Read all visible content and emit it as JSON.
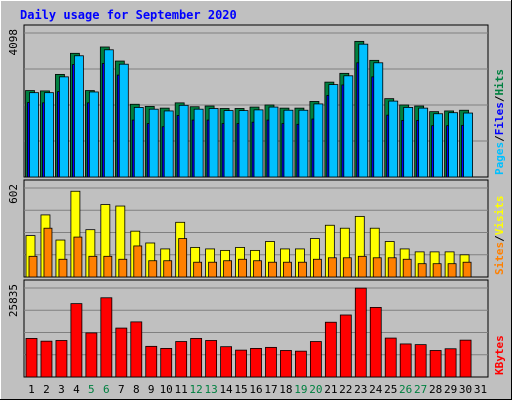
{
  "colors": {
    "hits": "#008040",
    "files": "#0000ff",
    "pages": "#00c0ff",
    "visits": "#ffff00",
    "sites": "#ff8000",
    "kbytes": "#ff0000",
    "title": "#0000ff",
    "panel": "#c0c0c0",
    "weekend_label": "#008040"
  },
  "chart_data": {
    "type": "bar",
    "title": "Daily usage for September 2020",
    "categories": [
      "1",
      "2",
      "3",
      "4",
      "5",
      "6",
      "7",
      "8",
      "9",
      "10",
      "11",
      "12",
      "13",
      "14",
      "15",
      "16",
      "17",
      "18",
      "19",
      "20",
      "21",
      "22",
      "23",
      "24",
      "25",
      "26",
      "27",
      "28",
      "29",
      "30",
      "31"
    ],
    "weekend_days": [
      "5",
      "6",
      "12",
      "13",
      "19",
      "20",
      "26",
      "27"
    ],
    "grid": true,
    "panels": [
      {
        "id": "top",
        "max_label": "4098",
        "max": 4098,
        "side_labels": [
          "Pages",
          "Files",
          "Hits"
        ],
        "series": [
          {
            "name": "Hits",
            "values": [
              2460,
              2450,
              2920,
              3520,
              2460,
              3700,
              3300,
              2070,
              2010,
              1960,
              2110,
              2000,
              2020,
              1950,
              1950,
              1990,
              2050,
              1960,
              1960,
              2150,
              2700,
              2950,
              3860,
              3320,
              2230,
              2050,
              2020,
              1860,
              1880,
              1900,
              0
            ]
          },
          {
            "name": "Files",
            "values": [
              2120,
              2110,
              2430,
              3200,
              2110,
              3230,
              2900,
              1620,
              1520,
              1430,
              1750,
              1620,
              1620,
              1520,
              1520,
              1560,
              1620,
              1520,
              1500,
              1650,
              2320,
              2620,
              3250,
              2850,
              1760,
              1610,
              1610,
              1460,
              1460,
              1470,
              0
            ]
          },
          {
            "name": "Pages",
            "values": [
              2400,
              2400,
              2850,
              3450,
              2420,
              3620,
              3210,
              1980,
              1930,
              1880,
              2040,
              1930,
              1950,
              1890,
              1890,
              1910,
              1990,
              1900,
              1900,
              2080,
              2630,
              2880,
              3780,
              3250,
              2160,
              1980,
              1960,
              1800,
              1830,
              1820,
              0
            ]
          }
        ]
      },
      {
        "id": "middle",
        "max_label": "602",
        "max": 602,
        "side_labels": [
          "Sites",
          "Visits"
        ],
        "series": [
          {
            "name": "Visits",
            "values": [
              280,
              420,
              250,
              580,
              320,
              490,
              480,
              310,
              230,
              190,
              370,
              200,
              190,
              180,
              200,
              180,
              240,
              190,
              190,
              260,
              350,
              330,
              410,
              330,
              240,
              190,
              170,
              170,
              170,
              150,
              0
            ]
          },
          {
            "name": "Sites",
            "values": [
              140,
              330,
              120,
              270,
              140,
              140,
              120,
              210,
              110,
              110,
              260,
              100,
              100,
              110,
              120,
              110,
              100,
              100,
              100,
              120,
              130,
              130,
              140,
              130,
              130,
              120,
              90,
              90,
              90,
              100,
              0
            ]
          }
        ]
      },
      {
        "id": "bottom",
        "max_label": "25835",
        "max": 25835,
        "side_labels": [
          "KBytes"
        ],
        "series": [
          {
            "name": "KBytes",
            "values": [
              11200,
              10400,
              10600,
              21300,
              12800,
              23000,
              14200,
              16000,
              8900,
              8300,
              10300,
              11200,
              10600,
              8800,
              7800,
              8300,
              8600,
              7700,
              7500,
              10300,
              15900,
              18000,
              25800,
              20200,
              11300,
              9600,
              9400,
              7700,
              8200,
              10700,
              0
            ]
          }
        ]
      }
    ]
  }
}
